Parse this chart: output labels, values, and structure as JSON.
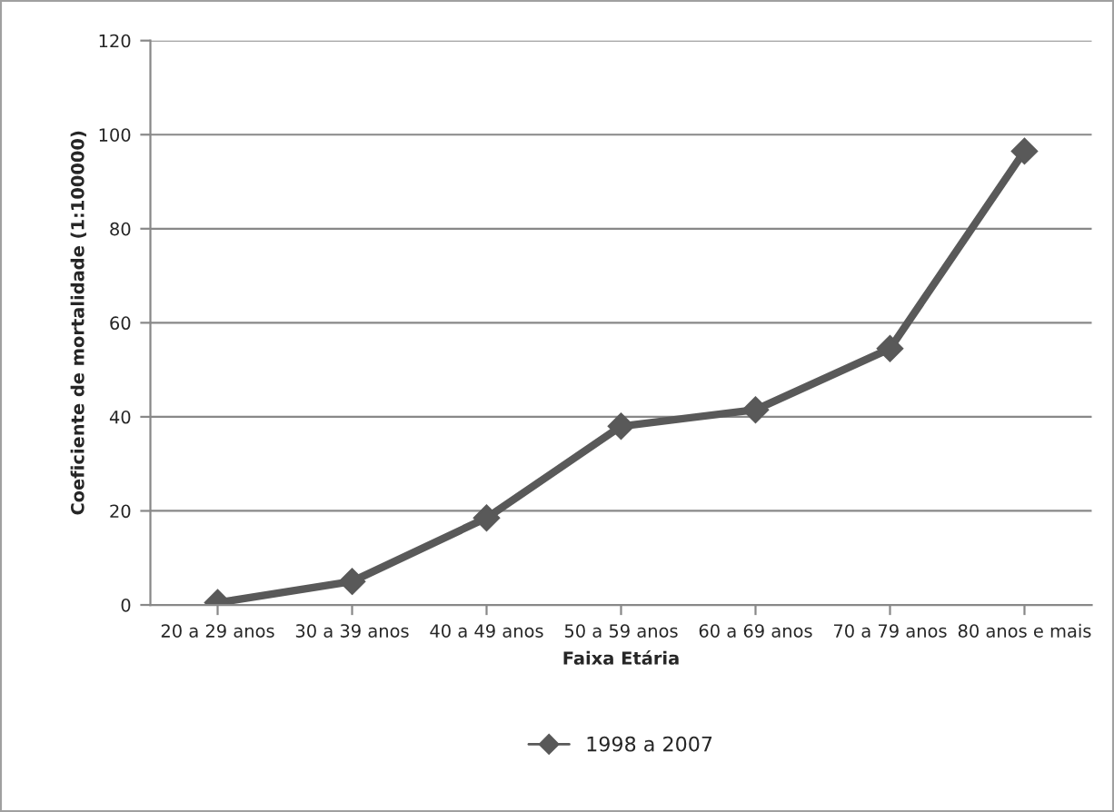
{
  "chart_data": {
    "type": "line",
    "xlabel": "Faixa Etária",
    "ylabel": "Coeficiente de mortalidade (1:100000)",
    "categories": [
      "20 a 29 anos",
      "30 a 39 anos",
      "40 a 49 anos",
      "50 a 59 anos",
      "60 a 69 anos",
      "70 a 79 anos",
      "80 anos e mais"
    ],
    "series": [
      {
        "name": "1998 a 2007",
        "color": "#595959",
        "values": [
          0.5,
          5,
          18.5,
          38,
          41.5,
          54.5,
          96.5
        ]
      }
    ],
    "ylim": [
      0,
      120
    ],
    "yticks": [
      0,
      20,
      40,
      60,
      80,
      100,
      120
    ],
    "grid": "y",
    "legend": "bottom",
    "marker": "diamond",
    "line_style": "solid"
  }
}
